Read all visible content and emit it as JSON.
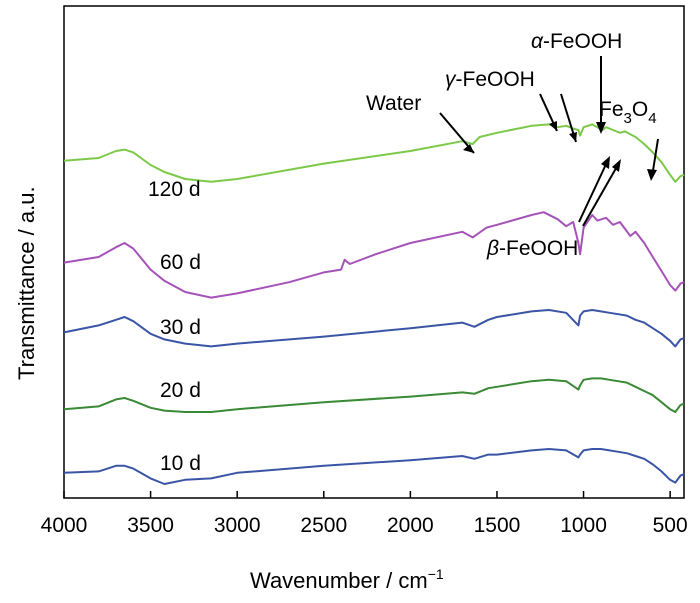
{
  "chart_data": {
    "type": "line",
    "xlabel_main": "Wavenumber / cm",
    "xlabel_sup": "−1",
    "ylabel": "Transmittance / a.u.",
    "xlim": [
      4000,
      420
    ],
    "x_reversed": true,
    "y_ticks_shown": false,
    "x_ticks": [
      4000,
      3500,
      3000,
      2500,
      2000,
      1500,
      1000,
      500
    ],
    "x_tick_labels": [
      "4000",
      "3500",
      "3000",
      "2500",
      "2000",
      "1500",
      "1000",
      "500"
    ],
    "series": [
      {
        "name": "10 d",
        "color": "#3b55a6",
        "x": [
          4000,
          3800,
          3700,
          3650,
          3600,
          3500,
          3420,
          3300,
          3150,
          3000,
          2500,
          2000,
          1700,
          1630,
          1550,
          1500,
          1300,
          1200,
          1100,
          1030,
          1020,
          1000,
          950,
          900,
          850,
          800,
          750,
          700,
          650,
          600,
          550,
          500,
          470,
          440,
          420
        ],
        "y": [
          -0.2,
          -0.1,
          0.3,
          0.3,
          0.1,
          -0.6,
          -1.0,
          -0.7,
          -0.6,
          -0.2,
          0.3,
          0.7,
          1.0,
          0.8,
          1.1,
          1.1,
          1.4,
          1.5,
          1.4,
          0.9,
          1.1,
          1.4,
          1.5,
          1.5,
          1.4,
          1.3,
          1.2,
          1.0,
          0.8,
          0.4,
          -0.1,
          -0.7,
          -0.9,
          -0.4,
          -0.3
        ]
      },
      {
        "name": "20 d",
        "color": "#3a8a35",
        "x": [
          4000,
          3800,
          3700,
          3650,
          3600,
          3500,
          3420,
          3300,
          3150,
          3000,
          2500,
          2000,
          1700,
          1630,
          1550,
          1500,
          1300,
          1200,
          1100,
          1030,
          1020,
          1000,
          950,
          900,
          850,
          800,
          750,
          700,
          650,
          600,
          550,
          500,
          470,
          440,
          420
        ],
        "y": [
          -0.3,
          -0.1,
          0.4,
          0.5,
          0.3,
          -0.2,
          -0.4,
          -0.5,
          -0.5,
          -0.3,
          0.2,
          0.6,
          0.9,
          0.8,
          1.2,
          1.3,
          1.7,
          1.8,
          1.7,
          1.1,
          1.4,
          1.8,
          1.9,
          1.9,
          1.8,
          1.7,
          1.6,
          1.3,
          1.0,
          0.7,
          0.2,
          -0.3,
          -0.5,
          0.0,
          0.1
        ]
      },
      {
        "name": "30 d",
        "color": "#3b55a6",
        "x": [
          4000,
          3800,
          3700,
          3650,
          3600,
          3500,
          3420,
          3300,
          3150,
          3000,
          2500,
          2000,
          1700,
          1630,
          1550,
          1500,
          1300,
          1200,
          1100,
          1030,
          1020,
          1000,
          950,
          900,
          850,
          800,
          750,
          700,
          650,
          600,
          550,
          500,
          470,
          440,
          420
        ],
        "y": [
          0.4,
          0.9,
          1.3,
          1.5,
          1.2,
          0.3,
          -0.1,
          -0.4,
          -0.6,
          -0.4,
          0.1,
          0.7,
          1.1,
          0.8,
          1.3,
          1.5,
          1.9,
          2.0,
          1.8,
          0.9,
          1.6,
          1.9,
          2.0,
          1.9,
          1.8,
          1.7,
          1.6,
          1.3,
          1.1,
          0.7,
          0.3,
          -0.2,
          -0.6,
          -0.1,
          0.0
        ]
      },
      {
        "name": "60 d",
        "color": "#a553b8",
        "x": [
          4000,
          3800,
          3700,
          3650,
          3600,
          3500,
          3420,
          3300,
          3150,
          3000,
          2700,
          2500,
          2400,
          2380,
          2350,
          2200,
          2000,
          1700,
          1640,
          1560,
          1500,
          1300,
          1230,
          1150,
          1100,
          1060,
          1030,
          1020,
          1000,
          950,
          920,
          870,
          830,
          790,
          760,
          730,
          700,
          650,
          600,
          550,
          500,
          470,
          440,
          420
        ],
        "y": [
          1.6,
          2.0,
          2.7,
          3.0,
          2.6,
          1.1,
          0.3,
          -0.5,
          -0.9,
          -0.6,
          0.2,
          0.9,
          1.1,
          1.8,
          1.5,
          2.2,
          3.0,
          3.8,
          3.4,
          4.1,
          4.3,
          5.0,
          5.2,
          4.7,
          4.2,
          4.5,
          3.0,
          2.2,
          4.1,
          5.0,
          4.6,
          4.8,
          4.3,
          4.5,
          4.0,
          3.5,
          3.8,
          3.0,
          2.0,
          1.0,
          0.0,
          -0.4,
          0.1,
          0.2
        ]
      },
      {
        "name": "120 d",
        "color": "#7cc94a",
        "x": [
          4000,
          3800,
          3700,
          3650,
          3600,
          3500,
          3420,
          3300,
          3150,
          3000,
          2500,
          2000,
          1700,
          1640,
          1600,
          1500,
          1300,
          1200,
          1150,
          1100,
          1060,
          1030,
          1020,
          1000,
          950,
          920,
          890,
          870,
          830,
          790,
          760,
          730,
          700,
          650,
          600,
          550,
          500,
          470,
          440,
          420
        ],
        "y": [
          2.8,
          3.0,
          3.5,
          3.6,
          3.4,
          2.5,
          2.0,
          1.5,
          1.3,
          1.5,
          2.6,
          3.5,
          4.2,
          4.0,
          4.5,
          4.8,
          5.3,
          5.4,
          5.2,
          5.3,
          5.1,
          5.0,
          4.6,
          5.2,
          5.4,
          5.2,
          5.0,
          5.2,
          5.0,
          4.8,
          4.9,
          4.7,
          4.5,
          4.0,
          3.4,
          2.7,
          1.8,
          1.3,
          1.7,
          1.8
        ]
      }
    ],
    "annotations": [
      {
        "text": "Water"
      },
      {
        "text_prefix": "γ",
        "text": "-FeOOH"
      },
      {
        "text_prefix": "α",
        "text": "-FeOOH"
      },
      {
        "text": "Fe",
        "sub1": "3",
        "mid": "O",
        "sub2": "4"
      },
      {
        "text_prefix": "β",
        "text": "-FeOOH"
      }
    ]
  }
}
